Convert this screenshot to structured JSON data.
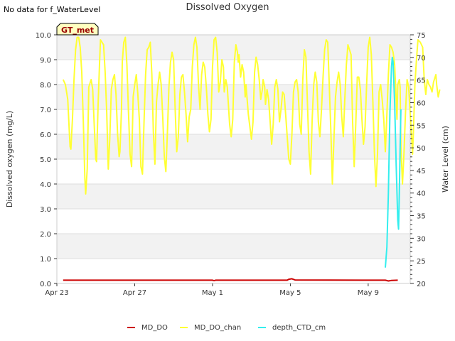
{
  "header": {
    "no_data_note": "No data for f_WaterLevel"
  },
  "chart_data": {
    "type": "line",
    "title": "Dissolved Oxygen",
    "ylabel": "Dissolved oxygen (mg/L)",
    "y2label": "Water Level (cm)",
    "xlabel": "",
    "xlim_days": [
      0,
      22.7
    ],
    "ylim": [
      0,
      10
    ],
    "y2lim": [
      20,
      75
    ],
    "xticks": [
      {
        "day": 0,
        "label": "Apr 23"
      },
      {
        "day": 5,
        "label": "Apr 27"
      },
      {
        "day": 10,
        "label": "May 1"
      },
      {
        "day": 15,
        "label": "May 5"
      },
      {
        "day": 20,
        "label": "May 9"
      }
    ],
    "yticks": [
      "0.0",
      "1.0",
      "2.0",
      "3.0",
      "4.0",
      "5.0",
      "6.0",
      "7.0",
      "8.0",
      "9.0",
      "10.0"
    ],
    "y2ticks": [
      "20",
      "25",
      "30",
      "35",
      "40",
      "45",
      "50",
      "55",
      "60",
      "65",
      "70",
      "75"
    ],
    "annotation": "GT_met",
    "legend": [
      "MD_DO",
      "MD_DO_chan",
      "depth_CTD_cm"
    ],
    "colors": {
      "MD_DO": "#cc0000",
      "MD_DO_chan": "#ffff33",
      "depth_CTD_cm": "#33eeee",
      "band": "#f2f2f2",
      "badge_bg": "#ffffc0",
      "badge_text": "#990000"
    },
    "series": [
      {
        "name": "MD_DO",
        "axis": "left",
        "points": [
          [
            0.4,
            0.13
          ],
          [
            10.0,
            0.13
          ],
          [
            10.1,
            0.11
          ],
          [
            10.2,
            0.13
          ],
          [
            14.8,
            0.13
          ],
          [
            14.9,
            0.17
          ],
          [
            15.1,
            0.19
          ],
          [
            15.3,
            0.14
          ],
          [
            21.1,
            0.13
          ],
          [
            21.3,
            0.1
          ],
          [
            21.5,
            0.12
          ],
          [
            21.9,
            0.13
          ]
        ]
      },
      {
        "name": "MD_DO_chan",
        "axis": "left",
        "points": [
          [
            0.4,
            8.2
          ],
          [
            0.55,
            8.0
          ],
          [
            0.7,
            7.4
          ],
          [
            0.8,
            6.1
          ],
          [
            0.85,
            5.5
          ],
          [
            0.9,
            5.4
          ],
          [
            1.0,
            6.6
          ],
          [
            1.1,
            8.2
          ],
          [
            1.2,
            9.4
          ],
          [
            1.3,
            9.9
          ],
          [
            1.4,
            9.9
          ],
          [
            1.5,
            9.5
          ],
          [
            1.6,
            8.5
          ],
          [
            1.7,
            6.5
          ],
          [
            1.8,
            4.2
          ],
          [
            1.85,
            3.6
          ],
          [
            1.95,
            4.6
          ],
          [
            2.05,
            7.9
          ],
          [
            2.2,
            8.2
          ],
          [
            2.3,
            7.8
          ],
          [
            2.4,
            6.4
          ],
          [
            2.5,
            5.0
          ],
          [
            2.55,
            4.9
          ],
          [
            2.65,
            7.2
          ],
          [
            2.75,
            9.0
          ],
          [
            2.8,
            9.8
          ],
          [
            2.9,
            9.7
          ],
          [
            3.0,
            9.6
          ],
          [
            3.1,
            8.5
          ],
          [
            3.2,
            6.9
          ],
          [
            3.3,
            4.6
          ],
          [
            3.4,
            5.8
          ],
          [
            3.5,
            7.8
          ],
          [
            3.6,
            8.2
          ],
          [
            3.7,
            8.4
          ],
          [
            3.8,
            7.6
          ],
          [
            3.9,
            6.0
          ],
          [
            4.0,
            5.1
          ],
          [
            4.05,
            5.3
          ],
          [
            4.15,
            7.0
          ],
          [
            4.2,
            8.9
          ],
          [
            4.3,
            9.7
          ],
          [
            4.4,
            9.9
          ],
          [
            4.5,
            8.8
          ],
          [
            4.6,
            6.9
          ],
          [
            4.7,
            5.2
          ],
          [
            4.8,
            4.7
          ],
          [
            4.9,
            7.5
          ],
          [
            5.0,
            8.0
          ],
          [
            5.1,
            8.4
          ],
          [
            5.2,
            7.6
          ],
          [
            5.3,
            6.6
          ],
          [
            5.4,
            4.7
          ],
          [
            5.5,
            4.4
          ],
          [
            5.6,
            6.5
          ],
          [
            5.7,
            8.4
          ],
          [
            5.8,
            9.4
          ],
          [
            5.9,
            9.5
          ],
          [
            6.0,
            9.7
          ],
          [
            6.1,
            8.4
          ],
          [
            6.2,
            6.1
          ],
          [
            6.3,
            4.8
          ],
          [
            6.4,
            7.3
          ],
          [
            6.5,
            8.0
          ],
          [
            6.6,
            8.5
          ],
          [
            6.7,
            8.0
          ],
          [
            6.8,
            6.7
          ],
          [
            6.9,
            5.1
          ],
          [
            7.0,
            4.5
          ],
          [
            7.1,
            6.0
          ],
          [
            7.2,
            7.9
          ],
          [
            7.3,
            8.9
          ],
          [
            7.4,
            9.3
          ],
          [
            7.5,
            9.0
          ],
          [
            7.6,
            7.0
          ],
          [
            7.7,
            5.3
          ],
          [
            7.8,
            5.9
          ],
          [
            7.9,
            7.6
          ],
          [
            8.0,
            8.3
          ],
          [
            8.1,
            8.4
          ],
          [
            8.2,
            7.7
          ],
          [
            8.3,
            6.8
          ],
          [
            8.4,
            5.7
          ],
          [
            8.5,
            6.7
          ],
          [
            8.6,
            7.0
          ],
          [
            8.7,
            8.7
          ],
          [
            8.8,
            9.6
          ],
          [
            8.9,
            9.9
          ],
          [
            9.0,
            9.5
          ],
          [
            9.1,
            8.0
          ],
          [
            9.2,
            7.0
          ],
          [
            9.3,
            8.4
          ],
          [
            9.4,
            8.9
          ],
          [
            9.5,
            8.7
          ],
          [
            9.6,
            7.9
          ],
          [
            9.7,
            6.8
          ],
          [
            9.8,
            6.1
          ],
          [
            9.9,
            6.6
          ],
          [
            10.0,
            8.7
          ],
          [
            10.1,
            9.8
          ],
          [
            10.2,
            9.9
          ],
          [
            10.3,
            9.3
          ],
          [
            10.4,
            7.7
          ],
          [
            10.5,
            8.1
          ],
          [
            10.6,
            9.0
          ],
          [
            10.7,
            8.7
          ],
          [
            10.75,
            7.7
          ],
          [
            10.85,
            8.2
          ],
          [
            10.95,
            7.9
          ],
          [
            11.1,
            6.4
          ],
          [
            11.2,
            5.9
          ],
          [
            11.3,
            6.6
          ],
          [
            11.4,
            8.9
          ],
          [
            11.5,
            9.6
          ],
          [
            11.6,
            9.3
          ],
          [
            11.65,
            8.9
          ],
          [
            11.7,
            9.2
          ],
          [
            11.8,
            8.3
          ],
          [
            11.9,
            8.8
          ],
          [
            12.0,
            8.5
          ],
          [
            12.1,
            7.5
          ],
          [
            12.15,
            8.0
          ],
          [
            12.3,
            6.8
          ],
          [
            12.4,
            6.3
          ],
          [
            12.5,
            5.8
          ],
          [
            12.6,
            6.5
          ],
          [
            12.7,
            8.5
          ],
          [
            12.8,
            9.1
          ],
          [
            12.9,
            8.8
          ],
          [
            13.0,
            8.2
          ],
          [
            13.1,
            7.4
          ],
          [
            13.2,
            7.8
          ],
          [
            13.25,
            8.2
          ],
          [
            13.35,
            7.9
          ],
          [
            13.4,
            7.2
          ],
          [
            13.5,
            7.8
          ],
          [
            13.6,
            7.4
          ],
          [
            13.7,
            6.5
          ],
          [
            13.8,
            5.6
          ],
          [
            13.9,
            6.4
          ],
          [
            14.0,
            7.9
          ],
          [
            14.1,
            8.2
          ],
          [
            14.2,
            7.8
          ],
          [
            14.3,
            6.5
          ],
          [
            14.4,
            7.0
          ],
          [
            14.5,
            7.7
          ],
          [
            14.6,
            7.6
          ],
          [
            14.7,
            6.8
          ],
          [
            14.8,
            5.9
          ],
          [
            14.9,
            5.0
          ],
          [
            15.0,
            4.8
          ],
          [
            15.1,
            6.0
          ],
          [
            15.2,
            7.7
          ],
          [
            15.3,
            8.1
          ],
          [
            15.4,
            8.2
          ],
          [
            15.5,
            7.7
          ],
          [
            15.6,
            6.4
          ],
          [
            15.7,
            6.0
          ],
          [
            15.8,
            8.2
          ],
          [
            15.9,
            9.4
          ],
          [
            16.0,
            9.1
          ],
          [
            16.1,
            7.2
          ],
          [
            16.2,
            5.3
          ],
          [
            16.3,
            4.4
          ],
          [
            16.4,
            6.6
          ],
          [
            16.5,
            8.0
          ],
          [
            16.6,
            8.5
          ],
          [
            16.7,
            8.1
          ],
          [
            16.8,
            6.5
          ],
          [
            16.9,
            5.9
          ],
          [
            17.0,
            7.0
          ],
          [
            17.1,
            8.3
          ],
          [
            17.2,
            9.4
          ],
          [
            17.3,
            9.8
          ],
          [
            17.4,
            9.7
          ],
          [
            17.5,
            8.0
          ],
          [
            17.6,
            6.2
          ],
          [
            17.7,
            4.0
          ],
          [
            17.8,
            5.8
          ],
          [
            17.9,
            7.5
          ],
          [
            18.0,
            8.1
          ],
          [
            18.1,
            8.5
          ],
          [
            18.2,
            8.0
          ],
          [
            18.3,
            6.7
          ],
          [
            18.4,
            5.9
          ],
          [
            18.5,
            7.4
          ],
          [
            18.6,
            8.8
          ],
          [
            18.7,
            9.6
          ],
          [
            18.8,
            9.4
          ],
          [
            18.9,
            9.2
          ],
          [
            19.0,
            6.5
          ],
          [
            19.1,
            4.7
          ],
          [
            19.2,
            6.4
          ],
          [
            19.3,
            8.3
          ],
          [
            19.4,
            8.3
          ],
          [
            19.5,
            7.8
          ],
          [
            19.6,
            6.6
          ],
          [
            19.7,
            5.6
          ],
          [
            19.8,
            6.3
          ],
          [
            19.9,
            8.0
          ],
          [
            20.0,
            9.5
          ],
          [
            20.1,
            9.9
          ],
          [
            20.2,
            9.2
          ],
          [
            20.3,
            7.3
          ],
          [
            20.4,
            5.3
          ],
          [
            20.5,
            3.9
          ],
          [
            20.6,
            5.2
          ],
          [
            20.7,
            7.7
          ],
          [
            20.8,
            8.0
          ],
          [
            20.9,
            7.4
          ],
          [
            21.0,
            6.6
          ],
          [
            21.1,
            5.3
          ],
          [
            21.2,
            6.8
          ],
          [
            21.3,
            8.4
          ],
          [
            21.4,
            9.6
          ],
          [
            21.5,
            9.5
          ],
          [
            21.6,
            9.3
          ],
          [
            21.7,
            8.8
          ],
          [
            21.8,
            7.4
          ],
          [
            21.85,
            6.6
          ],
          [
            21.9,
            8.0
          ],
          [
            22.0,
            8.2
          ],
          [
            22.05,
            7.9
          ],
          [
            22.1,
            5.5
          ],
          [
            22.2,
            4.0
          ],
          [
            22.3,
            5.2
          ],
          [
            22.4,
            6.9
          ],
          [
            22.5,
            8.2
          ],
          [
            22.6,
            7.9
          ],
          [
            22.7,
            6.8
          ],
          [
            22.8,
            5.8
          ],
          [
            22.85,
            5.2
          ],
          [
            22.9,
            6.0
          ],
          [
            23.0,
            8.0
          ],
          [
            23.05,
            8.5
          ],
          [
            23.1,
            9.0
          ],
          [
            23.2,
            9.8
          ],
          [
            23.35,
            9.7
          ],
          [
            23.5,
            9.5
          ],
          [
            23.6,
            8.2
          ],
          [
            23.7,
            7.6
          ],
          [
            23.8,
            8.2
          ],
          [
            23.9,
            8.0
          ],
          [
            24.0,
            7.9
          ],
          [
            24.1,
            7.7
          ],
          [
            24.2,
            8.1
          ],
          [
            24.3,
            8.3
          ],
          [
            24.35,
            8.4
          ],
          [
            24.4,
            8.0
          ],
          [
            24.5,
            7.5
          ],
          [
            24.6,
            7.8
          ]
        ]
      },
      {
        "name": "depth_CTD_cm",
        "axis": "right",
        "points": [
          [
            21.1,
            23.5
          ],
          [
            21.2,
            28.0
          ],
          [
            21.3,
            40.0
          ],
          [
            21.4,
            58.0
          ],
          [
            21.5,
            68.0
          ],
          [
            21.55,
            70.0
          ],
          [
            21.6,
            69.0
          ],
          [
            21.7,
            60.0
          ],
          [
            21.8,
            46.0
          ],
          [
            21.9,
            34.0
          ],
          [
            21.95,
            32.0
          ],
          [
            22.0,
            40.0
          ],
          [
            22.05,
            50.0
          ],
          [
            22.1,
            58.5
          ]
        ]
      }
    ]
  }
}
